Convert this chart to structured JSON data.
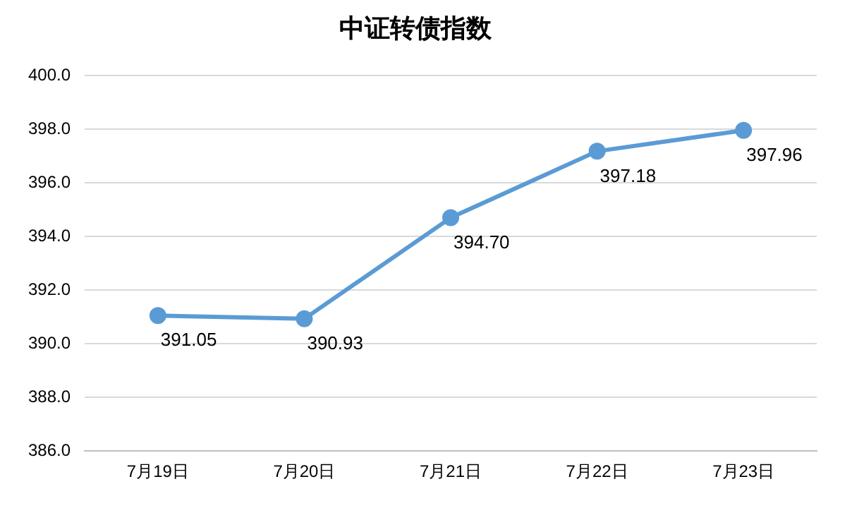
{
  "chart_data": {
    "type": "line",
    "title": "中证转债指数",
    "categories": [
      "7月19日",
      "7月20日",
      "7月21日",
      "7月22日",
      "7月23日"
    ],
    "series": [
      {
        "color": "#5b9bd5",
        "values": [
          391.05,
          390.93,
          394.7,
          397.18,
          397.96
        ],
        "value_labels": [
          "391.05",
          "390.93",
          "394.70",
          "397.18",
          "397.96"
        ]
      }
    ],
    "ylim": [
      386,
      400
    ],
    "yticks": [
      {
        "value": 386,
        "label": "386.0"
      },
      {
        "value": 388,
        "label": "388.0"
      },
      {
        "value": 390,
        "label": "390.0"
      },
      {
        "value": 392,
        "label": "392.0"
      },
      {
        "value": 394,
        "label": "394.0"
      },
      {
        "value": 396,
        "label": "396.0"
      },
      {
        "value": 398,
        "label": "398.0"
      },
      {
        "value": 400,
        "label": "400.0"
      }
    ],
    "grid": "y",
    "legend": false,
    "marker": "circle",
    "line_style": "solid"
  }
}
